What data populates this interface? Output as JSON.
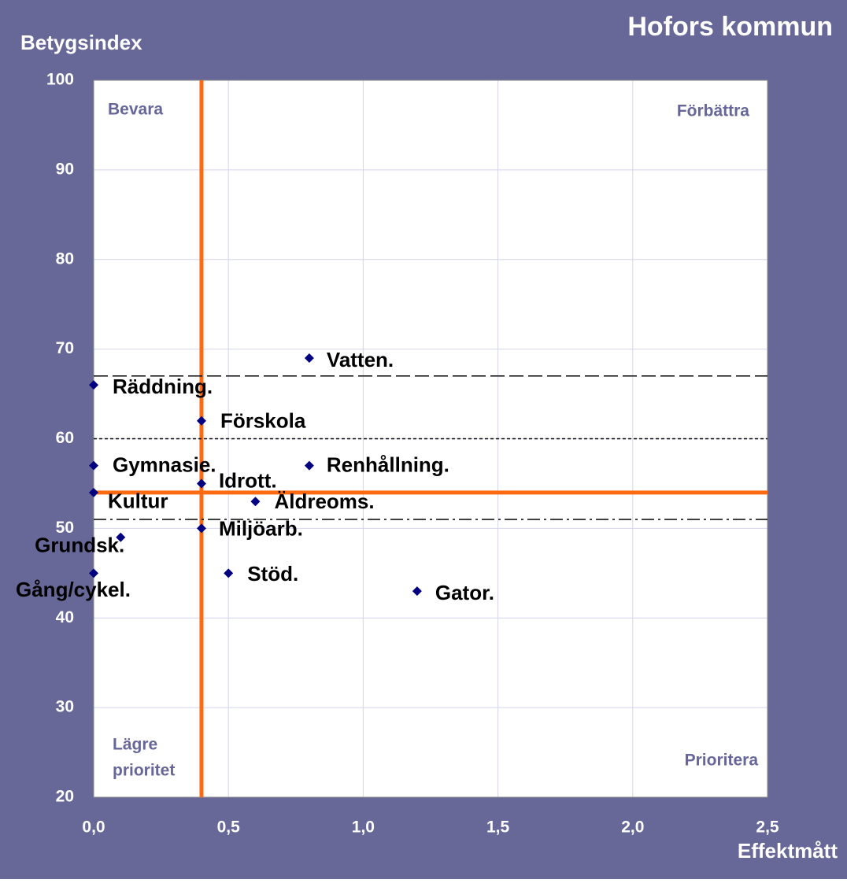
{
  "chart_data": {
    "type": "scatter",
    "title": "Hofors kommun",
    "y_label": "Betygsindex",
    "x_label": "Effektmått",
    "quadrant_labels": {
      "top_left": "Bevara",
      "top_right": "Förbättra",
      "bottom_left": [
        "Lägre",
        "prioritet"
      ],
      "bottom_right": "Prioritera"
    },
    "series": [
      {
        "color": "#000080",
        "labels": [
          "Vatten.",
          "Räddning.",
          "Förskola",
          "Gymnasie.",
          "Renhållning.",
          "Idrott.",
          "Kultur",
          "Äldreoms.",
          "Miljöarb.",
          "Grundsk.",
          "Gång/cykel.",
          "Stöd.",
          "Gator."
        ],
        "x": [
          0.8,
          0,
          0.4,
          0,
          0.8,
          0.4,
          0,
          0.6,
          0.4,
          0.1,
          0,
          0.5,
          1.2
        ],
        "values": [
          69,
          66,
          62,
          57,
          57,
          55,
          54,
          53,
          50,
          49,
          45,
          45,
          43
        ]
      }
    ],
    "reference_lines": [
      {
        "axis": "x",
        "value": 0.4,
        "style": "solid",
        "color": "#ff6a10"
      },
      {
        "axis": "y",
        "value": 54,
        "style": "solid",
        "color": "#ff6a10"
      },
      {
        "axis": "y",
        "value": 67,
        "style": "dash",
        "color": "#000000"
      },
      {
        "axis": "y",
        "value": 60,
        "style": "dot",
        "color": "#000000"
      },
      {
        "axis": "y",
        "value": 51,
        "style": "dashdot",
        "color": "#000000"
      }
    ],
    "xlim": [
      0,
      2.5
    ],
    "xticks": [
      {
        "value": 0,
        "label": "0,0"
      },
      {
        "value": 0.5,
        "label": "0,5"
      },
      {
        "value": 1,
        "label": "1,0"
      },
      {
        "value": 1.5,
        "label": "1,5"
      },
      {
        "value": 2,
        "label": "2,0"
      },
      {
        "value": 2.5,
        "label": "2,5"
      }
    ],
    "ylim": [
      20,
      100
    ],
    "yticks": [
      20,
      30,
      40,
      50,
      60,
      70,
      80,
      90,
      100
    ],
    "grid": true
  }
}
